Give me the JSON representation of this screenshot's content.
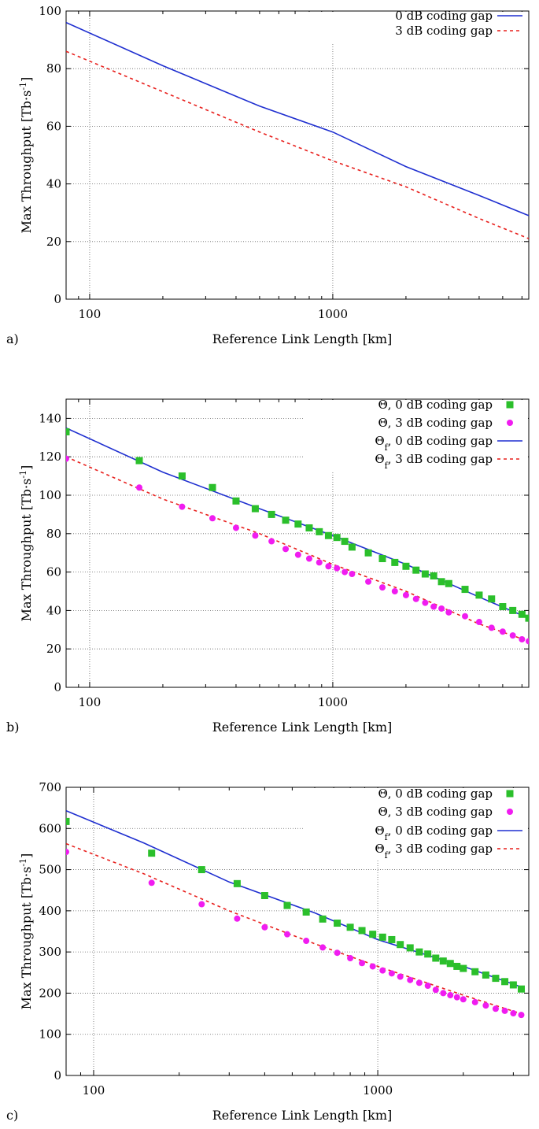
{
  "chart_data": [
    {
      "panel_label": "a)",
      "type": "line",
      "xlabel": "Reference Link Length [km]",
      "ylabel": "Max Throughput [Tb·s",
      "ylabel_sup": "-1",
      "ylabel_end": "]",
      "xscale": "log",
      "xlim": [
        80,
        6400
      ],
      "ylim": [
        0,
        100
      ],
      "xticks": [
        100,
        1000
      ],
      "yticks": [
        0,
        20,
        40,
        60,
        80,
        100
      ],
      "grid": true,
      "legend": "top-right",
      "series": [
        {
          "name": "0 dB coding gap",
          "kind": "line",
          "color": "#1f2fd0",
          "dash": "solid",
          "x": [
            80,
            200,
            500,
            1000,
            2000,
            4000,
            6400
          ],
          "y": [
            96,
            81,
            67,
            58,
            46,
            36,
            29
          ]
        },
        {
          "name": "3 dB coding gap",
          "kind": "line",
          "color": "#e8201d",
          "dash": "dashed",
          "x": [
            80,
            200,
            500,
            1000,
            2000,
            4000,
            6400
          ],
          "y": [
            86,
            72,
            58,
            48,
            39,
            28,
            21
          ]
        }
      ]
    },
    {
      "panel_label": "b)",
      "type": "scatter",
      "xlabel": "Reference Link Length [km]",
      "ylabel": "Max Throughput [Tb·s",
      "ylabel_sup": "-1",
      "ylabel_end": "]",
      "xscale": "log",
      "xlim": [
        80,
        6400
      ],
      "ylim": [
        0,
        150
      ],
      "xticks": [
        100,
        1000
      ],
      "yticks": [
        0,
        20,
        40,
        60,
        80,
        100,
        120,
        140
      ],
      "grid": true,
      "legend": "top-right",
      "series": [
        {
          "name": "Θ, 0 dB coding gap",
          "kind": "square",
          "color": "#2bbf2b",
          "x": [
            80,
            160,
            240,
            320,
            400,
            480,
            560,
            640,
            720,
            800,
            880,
            960,
            1040,
            1120,
            1200,
            1400,
            1600,
            1800,
            2000,
            2200,
            2400,
            2600,
            2800,
            3000,
            3500,
            4000,
            4500,
            5000,
            5500,
            6000,
            6400
          ],
          "y": [
            133,
            118,
            110,
            104,
            97,
            93,
            90,
            87,
            85,
            83,
            81,
            79,
            78,
            76,
            73,
            70,
            67,
            65,
            63,
            61,
            59,
            58,
            55,
            54,
            51,
            48,
            46,
            42,
            40,
            38,
            36
          ]
        },
        {
          "name": "Θ, 3 dB coding gap",
          "kind": "circle",
          "color": "#f01cf0",
          "x": [
            80,
            160,
            240,
            320,
            400,
            480,
            560,
            640,
            720,
            800,
            880,
            960,
            1040,
            1120,
            1200,
            1400,
            1600,
            1800,
            2000,
            2200,
            2400,
            2600,
            2800,
            3000,
            3500,
            4000,
            4500,
            5000,
            5500,
            6000,
            6400
          ],
          "y": [
            119,
            104,
            94,
            88,
            83,
            79,
            76,
            72,
            69,
            67,
            65,
            63,
            62,
            60,
            59,
            55,
            52,
            50,
            48,
            46,
            44,
            42,
            41,
            39,
            37,
            34,
            31,
            29,
            27,
            25,
            24
          ]
        },
        {
          "name": "Θ_f, 0 dB coding gap",
          "kind": "line",
          "color": "#1f2fd0",
          "dash": "solid",
          "x": [
            80,
            200,
            500,
            1000,
            2000,
            4000,
            6400
          ],
          "y": [
            135,
            112,
            93,
            79,
            64,
            47,
            36
          ]
        },
        {
          "name": "Θ_f, 3 dB coding gap",
          "kind": "line",
          "color": "#e8201d",
          "dash": "dashed",
          "x": [
            80,
            200,
            500,
            1000,
            2000,
            4000,
            6400
          ],
          "y": [
            120,
            98,
            80,
            64,
            50,
            33,
            24
          ]
        }
      ]
    },
    {
      "panel_label": "c)",
      "type": "scatter",
      "xlabel": "Reference Link Length [km]",
      "ylabel": "Max Throughput [Tb·s",
      "ylabel_sup": "-1",
      "ylabel_end": "]",
      "xscale": "log",
      "xlim": [
        80,
        3400
      ],
      "ylim": [
        0,
        700
      ],
      "xticks": [
        100,
        1000
      ],
      "yticks": [
        0,
        100,
        200,
        300,
        400,
        500,
        600,
        700
      ],
      "grid": true,
      "legend": "top-right",
      "series": [
        {
          "name": "Θ, 0 dB coding gap",
          "kind": "square",
          "color": "#2bbf2b",
          "x": [
            80,
            160,
            240,
            320,
            400,
            480,
            560,
            640,
            720,
            800,
            880,
            960,
            1040,
            1120,
            1200,
            1300,
            1400,
            1500,
            1600,
            1700,
            1800,
            1900,
            2000,
            2200,
            2400,
            2600,
            2800,
            3000,
            3200
          ],
          "y": [
            617,
            540,
            500,
            466,
            437,
            413,
            397,
            380,
            370,
            360,
            352,
            343,
            336,
            330,
            318,
            310,
            300,
            295,
            285,
            278,
            272,
            265,
            260,
            252,
            244,
            236,
            228,
            220,
            210
          ]
        },
        {
          "name": "Θ, 3 dB coding gap",
          "kind": "circle",
          "color": "#f01cf0",
          "x": [
            80,
            160,
            240,
            320,
            400,
            480,
            560,
            640,
            720,
            800,
            880,
            960,
            1040,
            1120,
            1200,
            1300,
            1400,
            1500,
            1600,
            1700,
            1800,
            1900,
            2000,
            2200,
            2400,
            2600,
            2800,
            3000,
            3200
          ],
          "y": [
            543,
            468,
            416,
            381,
            360,
            343,
            327,
            311,
            298,
            285,
            273,
            265,
            255,
            248,
            240,
            232,
            225,
            218,
            208,
            200,
            195,
            190,
            185,
            178,
            170,
            162,
            157,
            151,
            147
          ]
        },
        {
          "name": "Θ_f, 0 dB coding gap",
          "kind": "line",
          "color": "#1f2fd0",
          "dash": "solid",
          "x": [
            80,
            150,
            300,
            600,
            1000,
            2000,
            3200
          ],
          "y": [
            643,
            565,
            470,
            395,
            330,
            265,
            215
          ]
        },
        {
          "name": "Θ_f, 3 dB coding gap",
          "kind": "line",
          "color": "#e8201d",
          "dash": "dashed",
          "x": [
            80,
            150,
            300,
            600,
            1000,
            2000,
            3200
          ],
          "y": [
            563,
            490,
            400,
            320,
            265,
            195,
            150
          ]
        }
      ]
    }
  ]
}
